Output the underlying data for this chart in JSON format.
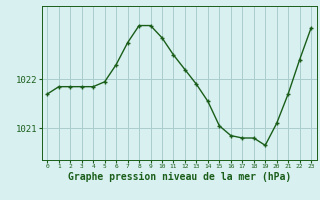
{
  "x": [
    0,
    1,
    2,
    3,
    4,
    5,
    6,
    7,
    8,
    9,
    10,
    11,
    12,
    13,
    14,
    15,
    16,
    17,
    18,
    19,
    20,
    21,
    22,
    23
  ],
  "y": [
    1021.7,
    1021.85,
    1021.85,
    1021.85,
    1021.85,
    1021.95,
    1022.3,
    1022.75,
    1023.1,
    1023.1,
    1022.85,
    1022.5,
    1022.2,
    1021.9,
    1021.55,
    1021.05,
    1020.85,
    1020.8,
    1020.8,
    1020.65,
    1021.1,
    1021.7,
    1022.4,
    1023.05
  ],
  "line_color": "#1a5e1a",
  "marker": "+",
  "bg_color": "#d8f0f0",
  "grid_color": "#aacccc",
  "xlabel": "Graphe pression niveau de la mer (hPa)",
  "xlabel_fontsize": 7,
  "tick_labels": [
    "0",
    "1",
    "2",
    "3",
    "4",
    "5",
    "6",
    "7",
    "8",
    "9",
    "10",
    "11",
    "12",
    "13",
    "14",
    "15",
    "16",
    "17",
    "18",
    "19",
    "20",
    "21",
    "22",
    "23"
  ],
  "ytick_positions": [
    1021,
    1022
  ],
  "ylim_min": 1020.35,
  "ylim_max": 1023.5,
  "xlim_min": -0.5,
  "xlim_max": 23.5,
  "ytick_fontsize": 6.5,
  "xtick_fontsize": 4.5
}
